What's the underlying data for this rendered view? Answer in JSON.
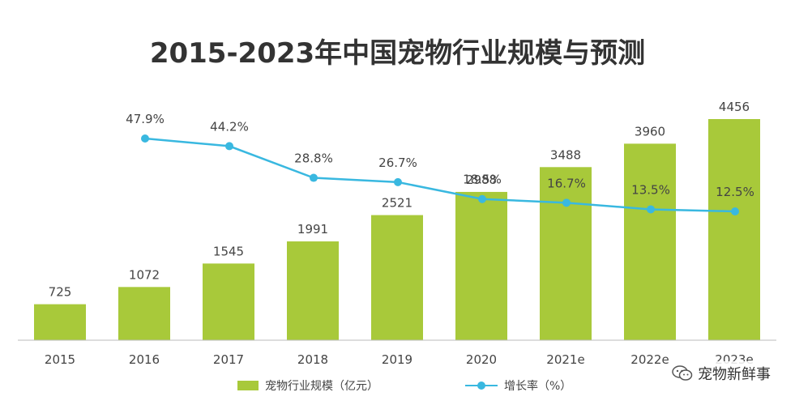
{
  "chart_data": {
    "type": "bar",
    "title": "2015-2023年中国宠物行业规模与预测",
    "categories": [
      "2015",
      "2016",
      "2017",
      "2018",
      "2019",
      "2020",
      "2021e",
      "2022e",
      "2023e"
    ],
    "series": [
      {
        "name": "宠物行业规模（亿元）",
        "type": "bar",
        "color": "#a8c93a",
        "values": [
          725,
          1072,
          1545,
          1991,
          2521,
          2988,
          3488,
          3960,
          4456
        ]
      },
      {
        "name": "增长率（%）",
        "type": "line",
        "color": "#39b8e0",
        "values": [
          null,
          47.9,
          44.2,
          28.8,
          26.7,
          18.5,
          16.7,
          13.5,
          12.5
        ],
        "labels": [
          "",
          "47.9%",
          "44.2%",
          "28.8%",
          "26.7%",
          "18.5%",
          "16.7%",
          "13.5%",
          "12.5%"
        ]
      }
    ],
    "ylim_bar": [
      0,
      4700
    ],
    "ylim_line": [
      0,
      60
    ],
    "grid": false,
    "legend_position": "bottom"
  },
  "watermark": {
    "icon": "wechat-icon",
    "text": "宠物新鲜事"
  }
}
